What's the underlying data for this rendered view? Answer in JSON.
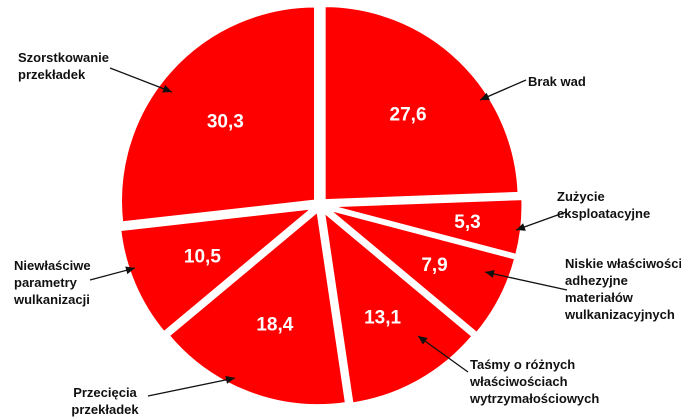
{
  "chart_data": {
    "type": "pie",
    "title": "",
    "slice_color": "#ff0000",
    "slices": [
      {
        "label": [
          "Brak wad"
        ],
        "value": 27.6,
        "value_text": "27,6"
      },
      {
        "label": [
          "Zużycie",
          "eksploatacyjne"
        ],
        "value": 5.3,
        "value_text": "5,3"
      },
      {
        "label": [
          "Niskie właściwości",
          "adhezyjne",
          "materiałów",
          "wulkanizacyjnych"
        ],
        "value": 7.9,
        "value_text": "7,9"
      },
      {
        "label": [
          "Taśmy o różnych",
          "właściwościach",
          "wytrzymałościowych"
        ],
        "value": 13.1,
        "value_text": "13,1"
      },
      {
        "label": [
          "Przecięcia",
          "przekładek"
        ],
        "value": 18.4,
        "value_text": "18,4"
      },
      {
        "label": [
          "Niewłaściwe",
          "parametry",
          "wulkanizacji"
        ],
        "value": 10.5,
        "value_text": "10,5"
      },
      {
        "label": [
          "Szorstkowanie",
          "przekładek"
        ],
        "value": 30.3,
        "value_text": "30,3"
      }
    ]
  }
}
